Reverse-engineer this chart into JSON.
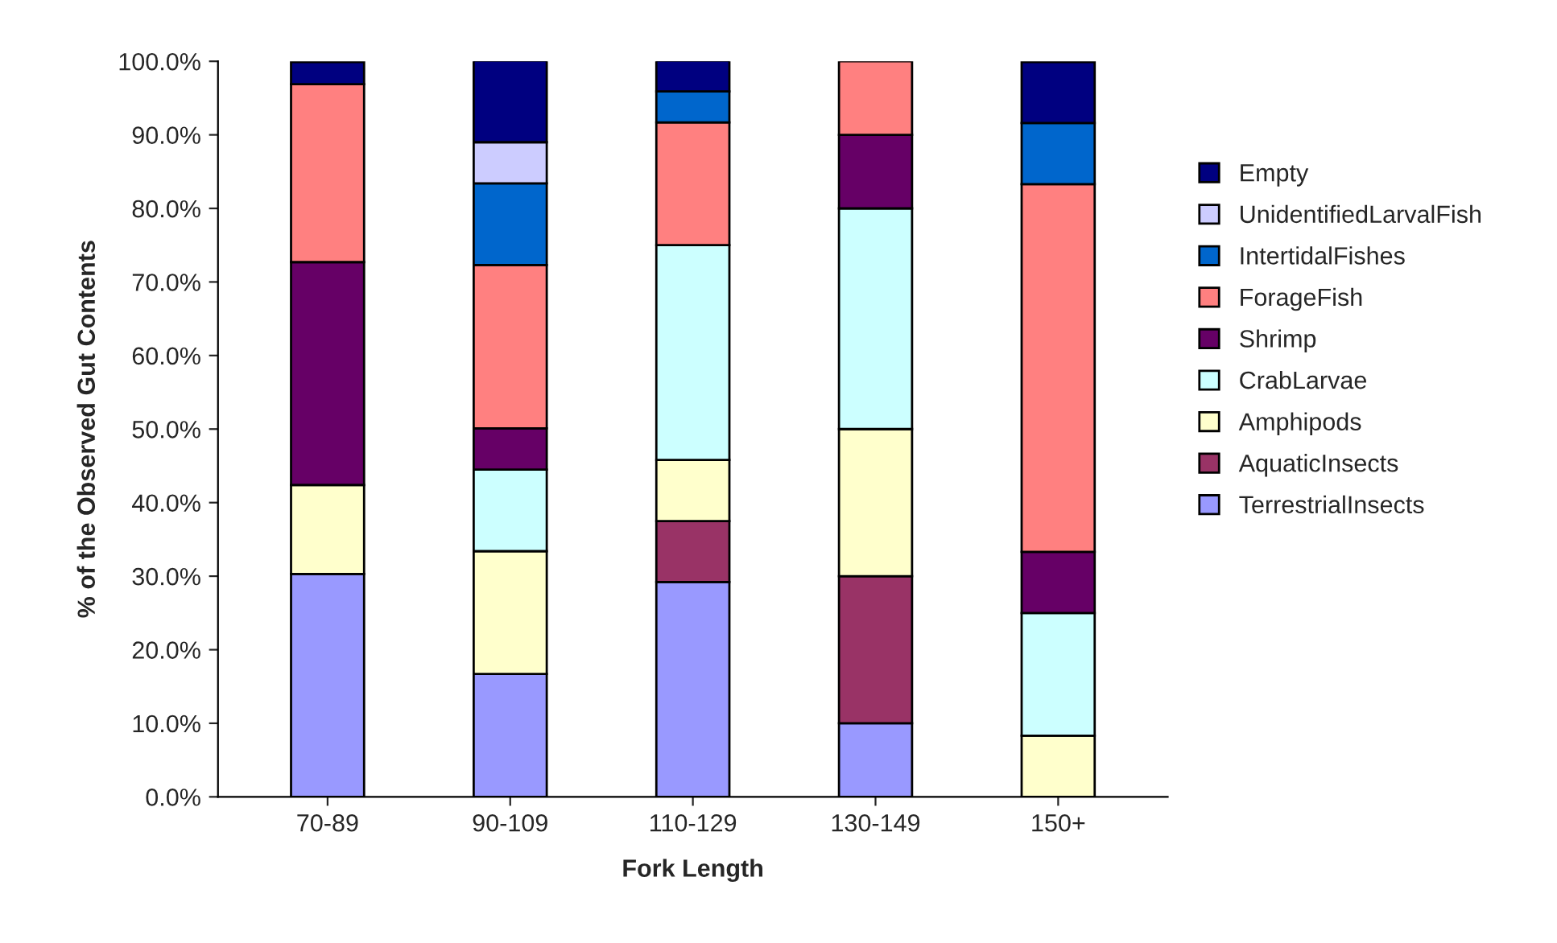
{
  "chart_data": {
    "type": "bar",
    "stacked": true,
    "xlabel": "Fork Length",
    "ylabel": "% of the Observed Gut Contents",
    "categories": [
      "70-89",
      "90-109",
      "110-129",
      "130-149",
      "150+"
    ],
    "series": [
      {
        "name": "TerrestrialInsects",
        "color": "#9999ff",
        "values": [
          30.3,
          16.7,
          29.2,
          10,
          0
        ]
      },
      {
        "name": "AquaticInsects",
        "color": "#993366",
        "values": [
          0,
          0,
          8.3,
          20,
          0
        ]
      },
      {
        "name": "Amphipods",
        "color": "#ffffcc",
        "values": [
          12.1,
          16.7,
          8.3,
          20,
          8.3
        ]
      },
      {
        "name": "CrabLarvae",
        "color": "#ccffff",
        "values": [
          0,
          11.1,
          29.2,
          30,
          16.7
        ]
      },
      {
        "name": "Shrimp",
        "color": "#660066",
        "values": [
          30.3,
          5.6,
          0,
          10,
          8.3
        ]
      },
      {
        "name": "ForageFish",
        "color": "#ff8080",
        "values": [
          24.2,
          22.2,
          16.7,
          10,
          50
        ]
      },
      {
        "name": "IntertidalFishes",
        "color": "#0066cc",
        "values": [
          0,
          11.1,
          4.2,
          0,
          8.3
        ]
      },
      {
        "name": "UnidentifiedLarvalFish",
        "color": "#ccccff",
        "values": [
          0,
          5.6,
          0,
          0,
          0
        ]
      },
      {
        "name": "Empty",
        "color": "#000080",
        "values": [
          3.0,
          11.1,
          4.2,
          0,
          8.3
        ]
      }
    ],
    "ylim": [
      0,
      100
    ],
    "yticks": [
      {
        "value": 0,
        "label": "0.0%"
      },
      {
        "value": 10,
        "label": "10.0%"
      },
      {
        "value": 20,
        "label": "20.0%"
      },
      {
        "value": 30,
        "label": "30.0%"
      },
      {
        "value": 40,
        "label": "40.0%"
      },
      {
        "value": 50,
        "label": "50.0%"
      },
      {
        "value": 60,
        "label": "60.0%"
      },
      {
        "value": 70,
        "label": "70.0%"
      },
      {
        "value": 80,
        "label": "80.0%"
      },
      {
        "value": 90,
        "label": "90.0%"
      },
      {
        "value": 100,
        "label": "100.0%"
      }
    ],
    "grid": false,
    "legend": "right"
  }
}
